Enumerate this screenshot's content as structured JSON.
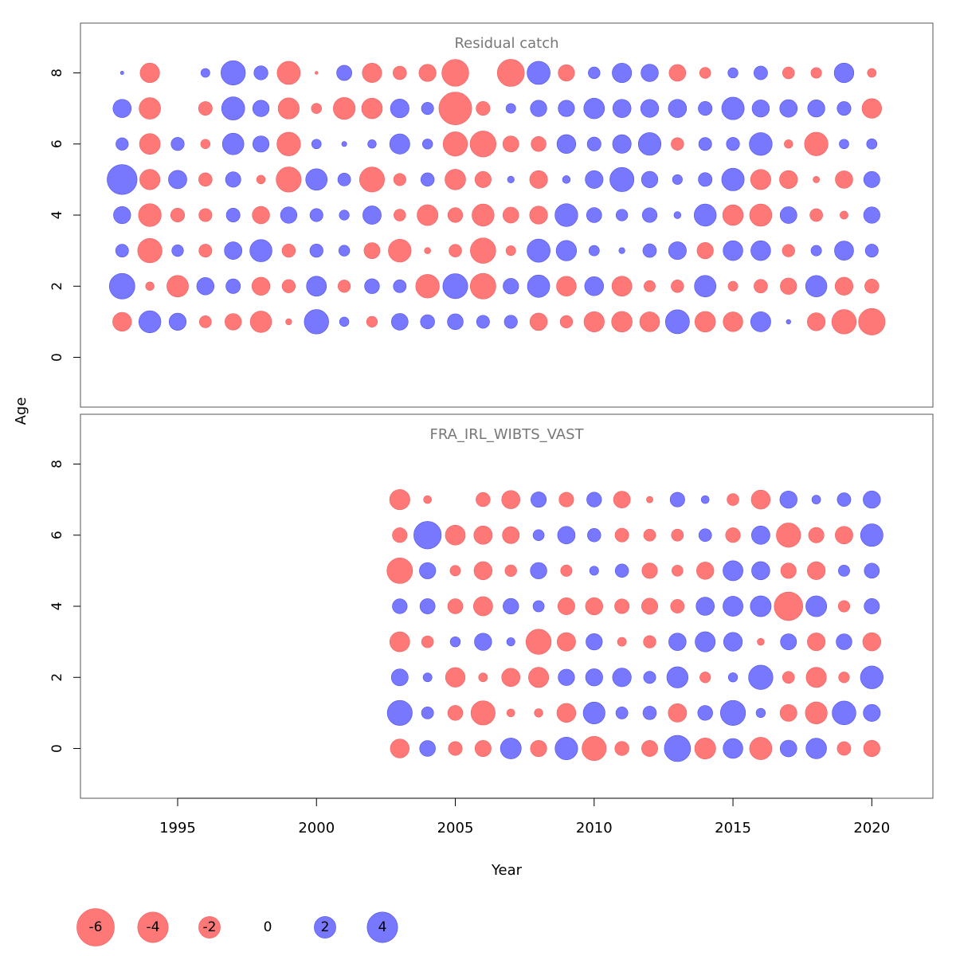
{
  "chart_data": {
    "type": "scatter",
    "subtype": "bubble",
    "xlabel": "Year",
    "ylabel": "Age",
    "xlim": [
      1991.5,
      2022.2
    ],
    "x_ticks": [
      "1995",
      "2000",
      "2005",
      "2010",
      "2015",
      "2020"
    ],
    "y_ticks": [
      "0",
      "2",
      "4",
      "6",
      "8"
    ],
    "colors": {
      "positive": "#7878ff",
      "negative": "#ff7878"
    },
    "panels": [
      {
        "title": "Residual catch",
        "ylim": [
          -1.4,
          9.4
        ],
        "years": [
          1993,
          1994,
          1995,
          1996,
          1997,
          1998,
          1999,
          2000,
          2001,
          2002,
          2003,
          2004,
          2005,
          2006,
          2007,
          2008,
          2009,
          2010,
          2011,
          2012,
          2013,
          2014,
          2015,
          2016,
          2017,
          2018,
          2019,
          2020
        ],
        "ages": [
          1,
          2,
          3,
          4,
          5,
          6,
          7,
          8
        ],
        "residuals": [
          [
            -1.52,
            2.09,
            1.26,
            -0.62,
            -1.17,
            -1.96,
            -0.16,
            2.56,
            0.38,
            -0.5,
            1.2,
            0.86,
            1.07,
            0.72,
            0.74,
            -1.3,
            -0.67,
            -1.77,
            -1.82,
            -1.7,
            2.47,
            -1.82,
            -1.66,
            1.73,
            0.09,
            -1.38,
            -2.55,
            -3.02
          ],
          [
            2.8,
            -0.31,
            -2.0,
            1.29,
            0.91,
            -1.39,
            -0.75,
            1.71,
            -0.66,
            0.95,
            0.71,
            -2.4,
            2.66,
            -2.81,
            1.04,
            2.14,
            -1.68,
            1.54,
            -1.71,
            -0.55,
            -0.68,
            1.99,
            -0.41,
            -0.79,
            -1.16,
            1.95,
            -1.38,
            -0.86
          ],
          [
            0.71,
            -2.55,
            0.58,
            -0.72,
            1.32,
            2.11,
            -0.76,
            0.75,
            0.51,
            -1.1,
            -2.24,
            -0.17,
            -0.69,
            -2.77,
            -0.41,
            2.3,
            1.79,
            0.47,
            0.16,
            0.79,
            1.37,
            -1.15,
            1.67,
            1.68,
            -0.67,
            0.48,
            1.57,
            0.72
          ],
          [
            1.27,
            -2.22,
            -0.83,
            -0.74,
            0.81,
            -1.29,
            1.16,
            0.73,
            0.43,
            1.46,
            -0.6,
            -1.87,
            -0.94,
            -2.1,
            -1.09,
            -1.38,
            2.23,
            0.98,
            0.59,
            0.93,
            0.21,
            2.1,
            -1.82,
            -2.12,
            1.21,
            -0.7,
            -0.28,
            1.15
          ],
          [
            3.85,
            -1.77,
            1.45,
            -0.78,
            1.01,
            -0.32,
            -2.7,
            1.98,
            0.71,
            -2.67,
            -0.65,
            0.77,
            -1.83,
            -1.13,
            0.2,
            -1.36,
            0.26,
            1.36,
            2.5,
            1.15,
            0.42,
            0.81,
            2.17,
            -1.76,
            -1.39,
            -0.18,
            -1.31,
            1.12
          ],
          [
            0.66,
            -1.85,
            0.74,
            -0.38,
            1.98,
            1.14,
            -2.39,
            0.39,
            0.11,
            0.31,
            1.74,
            0.44,
            -2.55,
            -2.9,
            -1.1,
            -0.96,
            1.52,
            0.82,
            1.48,
            2.21,
            -0.68,
            0.72,
            0.74,
            2.24,
            -0.31,
            -2.37,
            0.39,
            0.46
          ],
          [
            1.43,
            -1.98,
            0.0,
            -0.81,
            2.28,
            1.16,
            -1.91,
            -0.45,
            -2.06,
            -1.83,
            1.5,
            0.64,
            -4.61,
            -0.83,
            0.41,
            1.16,
            1.14,
            1.83,
            1.43,
            1.38,
            1.43,
            0.83,
            2.17,
            1.28,
            1.32,
            1.26,
            0.82,
            -1.65
          ],
          [
            0.05,
            -1.63,
            0.0,
            0.34,
            2.56,
            0.84,
            -2.29,
            -0.04,
            0.99,
            -1.61,
            -0.78,
            -1.26,
            -3.09,
            0.0,
            -3.14,
            2.28,
            -1.14,
            0.59,
            1.62,
            1.3,
            -1.2,
            -0.53,
            0.44,
            0.8,
            -0.6,
            -0.49,
            1.65,
            -0.33
          ]
        ]
      },
      {
        "title": "FRA_IRL_WIBTS_VAST",
        "ylim": [
          -1.4,
          9.4
        ],
        "years": [
          2003,
          2004,
          2005,
          2006,
          2007,
          2008,
          2009,
          2010,
          2011,
          2012,
          2013,
          2014,
          2015,
          2016,
          2017,
          2018,
          2019,
          2020
        ],
        "ages": [
          0,
          1,
          2,
          3,
          4,
          5,
          6,
          7
        ],
        "residuals": [
          [
            -1.53,
            1.07,
            -0.83,
            -1.13,
            1.86,
            -1.14,
            2.2,
            -2.52,
            -0.86,
            -1.12,
            2.95,
            -1.89,
            1.68,
            -2.14,
            1.2,
            1.81,
            -0.8,
            -1.15
          ],
          [
            2.67,
            0.63,
            -0.96,
            -2.51,
            -0.27,
            -0.31,
            -1.54,
            2.05,
            0.62,
            0.78,
            -1.46,
            0.95,
            2.7,
            0.37,
            -1.22,
            -2.06,
            2.42,
            1.24
          ],
          [
            1.22,
            0.34,
            -1.64,
            -0.34,
            -1.44,
            -1.75,
            1.15,
            1.26,
            1.5,
            0.64,
            1.94,
            -0.5,
            0.37,
            2.55,
            -0.61,
            -1.76,
            -0.5,
            2.22
          ],
          [
            -1.71,
            -0.61,
            0.44,
            1.28,
            0.29,
            -2.73,
            -1.47,
            1.16,
            -0.34,
            -0.67,
            1.3,
            1.74,
            1.51,
            -0.21,
            1.11,
            -1.37,
            1.07,
            -1.41
          ],
          [
            0.94,
            0.99,
            -0.98,
            -1.58,
            1.05,
            0.54,
            -1.23,
            -1.28,
            -0.91,
            -1.13,
            -0.8,
            1.43,
            1.72,
            1.86,
            -3.5,
            1.87,
            -0.57,
            1.01
          ],
          [
            -2.82,
            1.14,
            -0.48,
            -1.41,
            -0.59,
            1.17,
            -0.56,
            0.35,
            0.77,
            -1.02,
            -0.53,
            -1.29,
            1.72,
            1.42,
            -1.02,
            -1.38,
            0.55,
            0.98
          ],
          [
            -0.93,
            3.24,
            -1.7,
            -1.46,
            -1.23,
            0.53,
            1.32,
            0.77,
            -0.81,
            -0.62,
            -0.62,
            0.7,
            -0.93,
            1.46,
            -2.54,
            -1.02,
            -1.34,
            2.17
          ],
          [
            -1.76,
            -0.27,
            0.0,
            -0.86,
            -1.43,
            1.03,
            -0.92,
            0.94,
            -1.21,
            -0.18,
            0.92,
            0.27,
            -0.61,
            -1.55,
            1.28,
            0.33,
            0.8,
            1.29
          ]
        ]
      }
    ],
    "size_legend": [
      "-6",
      "-4",
      "-2",
      "0",
      "2",
      "4"
    ]
  }
}
